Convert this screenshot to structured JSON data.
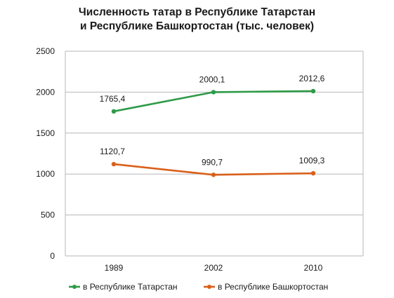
{
  "chart_data": {
    "type": "line",
    "title_lines": [
      "Численность татар в Республике Татарстан",
      "и Республике Башкортостан (тыс. человек)"
    ],
    "categories": [
      "1989",
      "2002",
      "2010"
    ],
    "ylim": [
      0,
      2500
    ],
    "yticks": [
      0,
      500,
      1000,
      1500,
      2000,
      2500
    ],
    "grid": true,
    "legend_position": "bottom",
    "series": [
      {
        "name": "в Республике Татарстан",
        "values": [
          1765.4,
          2000.1,
          2012.6
        ],
        "labels": [
          "1765,4",
          "2000,1",
          "2012,6"
        ],
        "color": "#2e9a47"
      },
      {
        "name": "в Республике Башкортостан",
        "values": [
          1120.7,
          990.7,
          1009.3
        ],
        "labels": [
          "1120,7",
          "990,7",
          "1009,3"
        ],
        "color": "#d9601a"
      }
    ]
  }
}
